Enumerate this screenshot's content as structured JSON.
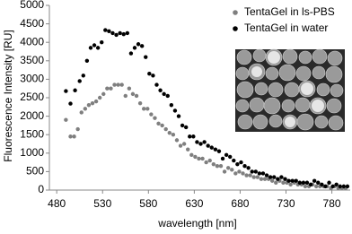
{
  "chart_data": {
    "type": "scatter",
    "xlabel": "wavelength [nm]",
    "ylabel": "Fluorescence Intensity [RU]",
    "xlim": [
      472,
      800
    ],
    "xticks": [
      480,
      530,
      580,
      630,
      680,
      730,
      780
    ],
    "ylim": [
      0,
      5000
    ],
    "yticks": [
      0,
      500,
      1000,
      1500,
      2000,
      2500,
      3000,
      3500,
      4000,
      4500,
      5000
    ],
    "legend": "top-right",
    "series": [
      {
        "name": "TentaGel in ls-PBS",
        "color": "#7f7f7f",
        "x": [
          490,
          495,
          499,
          503,
          507,
          511,
          515,
          519,
          523,
          527,
          531,
          535,
          539,
          543,
          547,
          551,
          555,
          559,
          563,
          567,
          571,
          575,
          579,
          583,
          587,
          591,
          595,
          599,
          603,
          607,
          611,
          615,
          619,
          623,
          627,
          631,
          635,
          639,
          643,
          647,
          651,
          655,
          659,
          663,
          667,
          671,
          675,
          679,
          683,
          687,
          691,
          695,
          699,
          703,
          707,
          711,
          715,
          719,
          723,
          727,
          731,
          735,
          739,
          743,
          747,
          751,
          755,
          759,
          763,
          767,
          771,
          775,
          779,
          783,
          787,
          791,
          795
        ],
        "values": [
          1900,
          1450,
          1450,
          1650,
          2100,
          2200,
          2300,
          2350,
          2400,
          2500,
          2600,
          2750,
          2750,
          2850,
          2850,
          2850,
          2550,
          2750,
          2600,
          2550,
          2350,
          2200,
          2200,
          2050,
          1950,
          1800,
          1750,
          1650,
          1550,
          1500,
          1350,
          1200,
          1250,
          1100,
          950,
          900,
          850,
          850,
          750,
          800,
          700,
          650,
          650,
          500,
          600,
          550,
          450,
          500,
          450,
          400,
          400,
          350,
          350,
          300,
          300,
          300,
          250,
          200,
          250,
          200,
          200,
          150,
          200,
          150,
          150,
          100,
          100,
          150,
          100,
          100,
          100,
          100,
          50,
          100,
          50,
          50,
          50
        ]
      },
      {
        "name": "TentaGel in water",
        "color": "#000000",
        "x": [
          490,
          495,
          500,
          505,
          509,
          513,
          517,
          521,
          525,
          529,
          533,
          537,
          541,
          545,
          549,
          553,
          557,
          561,
          565,
          569,
          573,
          577,
          581,
          585,
          589,
          593,
          597,
          601,
          605,
          609,
          613,
          617,
          621,
          625,
          629,
          633,
          637,
          641,
          645,
          649,
          653,
          657,
          661,
          665,
          669,
          673,
          677,
          681,
          685,
          689,
          693,
          697,
          701,
          705,
          709,
          713,
          717,
          721,
          725,
          729,
          733,
          737,
          741,
          745,
          749,
          753,
          757,
          761,
          765,
          769,
          773,
          777,
          781,
          785,
          789,
          793,
          797
        ],
        "values": [
          2680,
          2340,
          2700,
          2950,
          3100,
          3500,
          3850,
          3920,
          3850,
          4000,
          4330,
          4300,
          4250,
          4200,
          4250,
          4220,
          4250,
          3700,
          3850,
          3950,
          3900,
          3600,
          3150,
          3100,
          2850,
          2700,
          2600,
          2550,
          2300,
          2150,
          2000,
          1750,
          1700,
          1450,
          1450,
          1300,
          1250,
          1300,
          1200,
          1150,
          1100,
          1050,
          850,
          950,
          900,
          800,
          700,
          750,
          650,
          600,
          500,
          500,
          450,
          450,
          400,
          350,
          350,
          300,
          350,
          300,
          250,
          250,
          250,
          200,
          200,
          200,
          150,
          250,
          200,
          150,
          100,
          200,
          100,
          150,
          100,
          100,
          100
        ]
      }
    ]
  }
}
